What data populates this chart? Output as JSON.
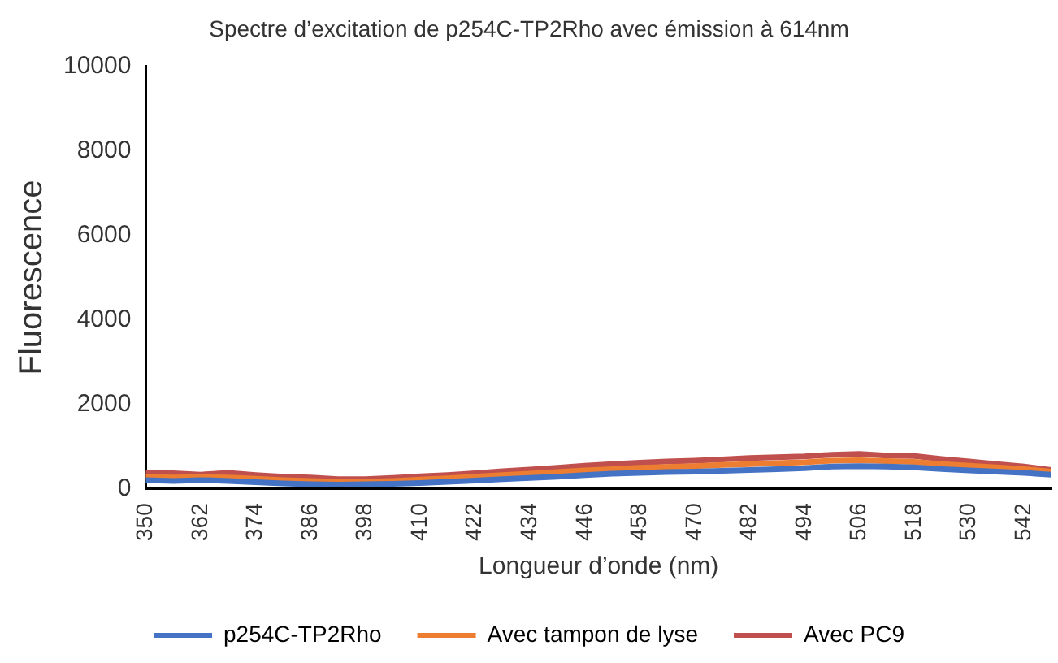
{
  "chart_data": {
    "type": "line",
    "title": "Spectre d’excitation de p254C-TP2Rho avec émission à 614nm",
    "xlabel": "Longueur d’onde (nm)",
    "ylabel": "Fluorescence",
    "x": [
      350,
      356,
      362,
      368,
      374,
      380,
      386,
      392,
      398,
      404,
      410,
      416,
      422,
      428,
      434,
      440,
      446,
      452,
      458,
      464,
      470,
      476,
      482,
      488,
      494,
      500,
      506,
      512,
      518,
      524,
      530,
      536,
      542,
      548
    ],
    "series": [
      {
        "name": "p254C-TP2Rho",
        "color": "#4472c4",
        "values": [
          200,
          180,
          200,
          180,
          150,
          120,
          100,
          90,
          100,
          110,
          130,
          160,
          190,
          220,
          250,
          280,
          320,
          350,
          370,
          390,
          400,
          420,
          440,
          460,
          480,
          520,
          530,
          520,
          500,
          460,
          430,
          400,
          370,
          330
        ]
      },
      {
        "name": "Avec tampon de lyse",
        "color": "#ed7d31",
        "values": [
          280,
          260,
          270,
          260,
          230,
          200,
          180,
          160,
          160,
          180,
          210,
          240,
          280,
          320,
          350,
          390,
          430,
          460,
          490,
          510,
          530,
          560,
          580,
          600,
          620,
          660,
          670,
          650,
          630,
          580,
          540,
          500,
          460,
          400
        ]
      },
      {
        "name": "Avec PC9",
        "color": "#c0504d",
        "values": [
          380,
          360,
          330,
          370,
          320,
          280,
          260,
          220,
          220,
          250,
          290,
          320,
          360,
          410,
          450,
          490,
          540,
          580,
          610,
          640,
          660,
          690,
          720,
          740,
          760,
          800,
          820,
          780,
          770,
          700,
          640,
          580,
          520,
          440
        ]
      }
    ],
    "xlim": [
      350,
      548
    ],
    "xticks": [
      350,
      362,
      374,
      386,
      398,
      410,
      422,
      434,
      446,
      458,
      470,
      482,
      494,
      506,
      518,
      530,
      542
    ],
    "ylim": [
      0,
      10000
    ],
    "yticks": [
      0,
      2000,
      4000,
      6000,
      8000,
      10000
    ],
    "grid": false,
    "legend": "bottom",
    "marker": "none",
    "line_style": "solid"
  }
}
